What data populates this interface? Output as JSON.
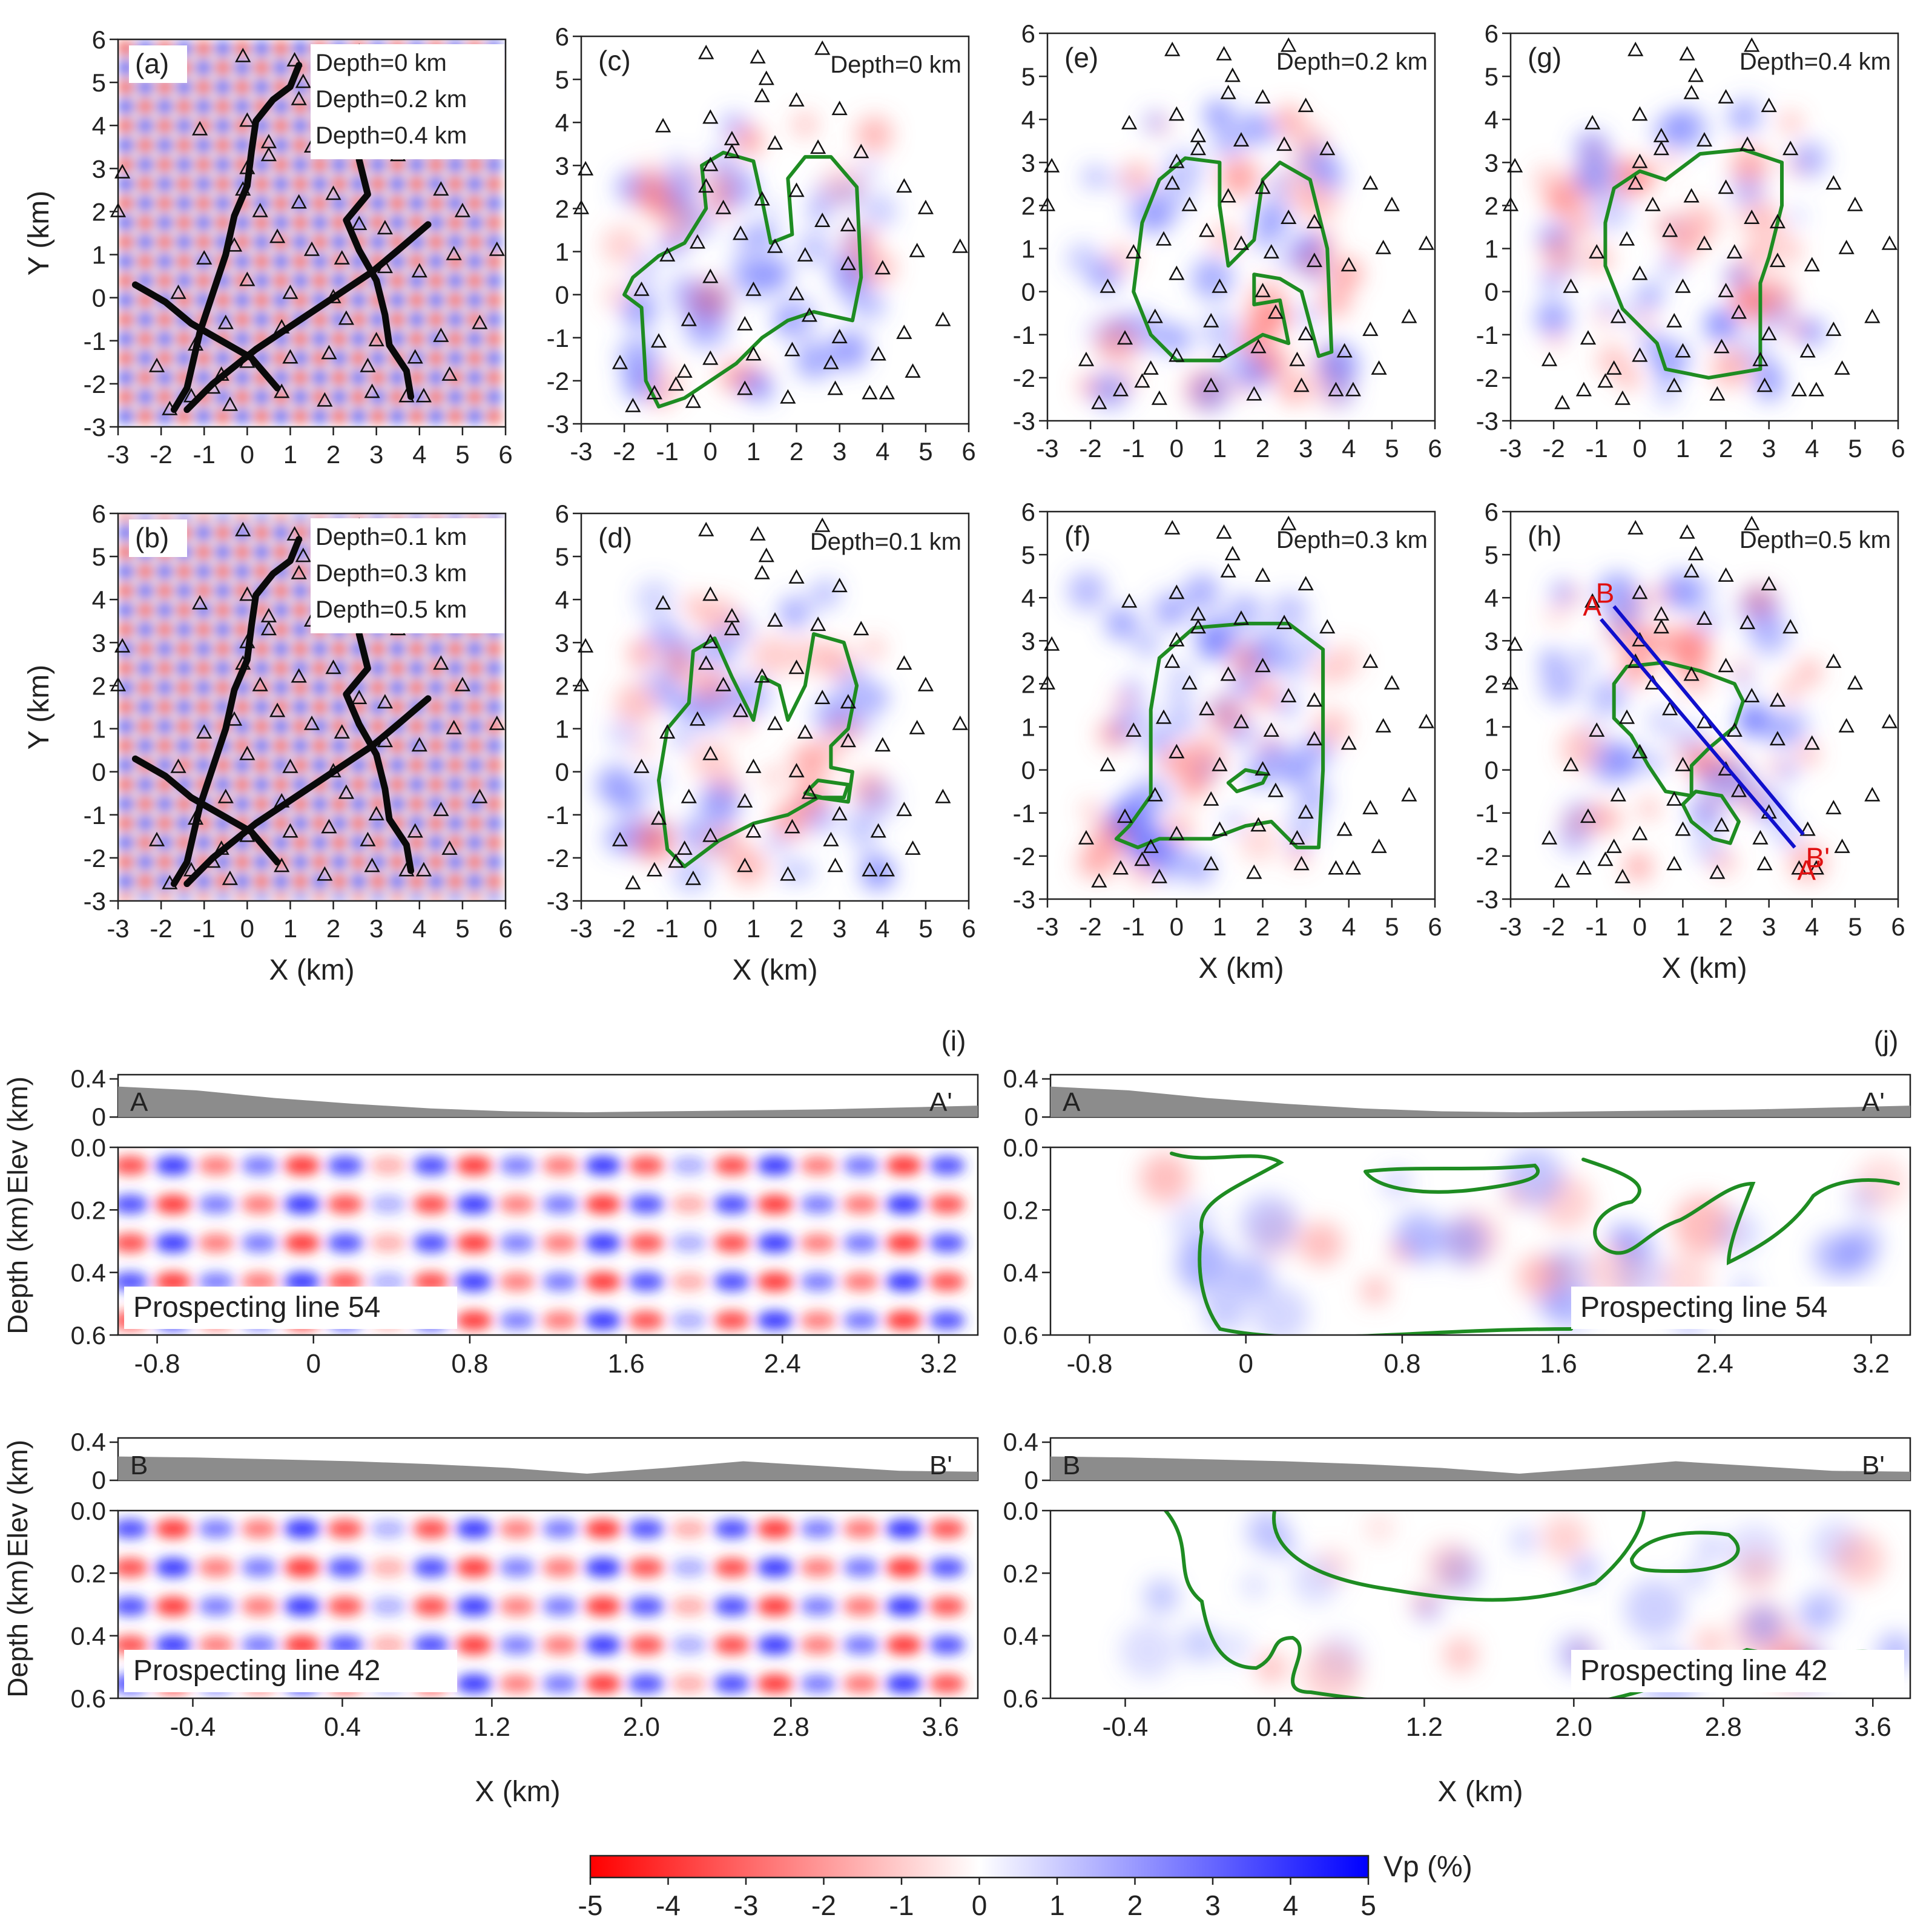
{
  "colors": {
    "negative": "#ff0000",
    "positive": "#0000ff",
    "neutral": "#ffffff",
    "contour": "#1e8c22",
    "profile_line": "#1010cc",
    "profile_label": "#e01010",
    "fault": "#0a0a0a",
    "topography": "#8c8c8c"
  },
  "map_axis": {
    "xlabel": "X (km)",
    "ylabel": "Y (km)",
    "xticks": [
      "-3",
      "-2",
      "-1",
      "0",
      "1",
      "2",
      "3",
      "4",
      "5",
      "6"
    ],
    "yticks": [
      "-3",
      "-2",
      "-1",
      "0",
      "1",
      "2",
      "3",
      "4",
      "5",
      "6"
    ],
    "xlim": [
      -3,
      6
    ],
    "ylim": [
      -3,
      6
    ]
  },
  "panels": [
    {
      "key": "a",
      "label": "(a)",
      "kind": "checker",
      "depths": [
        "Depth=0 km",
        "Depth=0.2 km",
        "Depth=0.4 km"
      ]
    },
    {
      "key": "b",
      "label": "(b)",
      "kind": "checker",
      "depths": [
        "Depth=0.1 km",
        "Depth=0.3 km",
        "Depth=0.5 km"
      ]
    },
    {
      "key": "c",
      "label": "(c)",
      "kind": "recovery",
      "depth": "Depth=0 km"
    },
    {
      "key": "d",
      "label": "(d)",
      "kind": "recovery",
      "depth": "Depth=0.1 km"
    },
    {
      "key": "e",
      "label": "(e)",
      "kind": "recovery",
      "depth": "Depth=0.2 km"
    },
    {
      "key": "f",
      "label": "(f)",
      "kind": "recovery",
      "depth": "Depth=0.3 km"
    },
    {
      "key": "g",
      "label": "(g)",
      "kind": "recovery",
      "depth": "Depth=0.4 km"
    },
    {
      "key": "h",
      "label": "(h)",
      "kind": "recovery",
      "depth": "Depth=0.5 km"
    }
  ],
  "profile_lines": {
    "AA": {
      "start": "A",
      "end": "A'",
      "x0": -0.9,
      "y0": 3.5,
      "x1": 3.6,
      "y1": -1.8
    },
    "BB": {
      "start": "B",
      "end": "B'",
      "x0": -0.6,
      "y0": 3.8,
      "x1": 3.8,
      "y1": -1.5
    }
  },
  "sections": [
    {
      "key": "i1",
      "panel_label": "(i)",
      "ends": [
        "A",
        "A'"
      ],
      "line_label": "Prospecting line 54",
      "xticks": [
        "-0.8",
        "0",
        "0.8",
        "1.6",
        "2.4",
        "3.2"
      ],
      "xlim": [
        -1.0,
        3.4
      ],
      "elev_label": "Elev (km)",
      "elev_ticks": [
        "0.4",
        "0"
      ],
      "depth_label": "Depth (km)",
      "depth_ticks": [
        "0.0",
        "0.2",
        "0.4",
        "0.6"
      ],
      "topo": [
        0.32,
        0.28,
        0.2,
        0.14,
        0.09,
        0.06,
        0.05,
        0.06,
        0.07,
        0.08,
        0.1,
        0.12
      ]
    },
    {
      "key": "j1",
      "panel_label": "(j)",
      "ends": [
        "A",
        "A'"
      ],
      "line_label": "Prospecting line 54",
      "xticks": [
        "-0.8",
        "0",
        "0.8",
        "1.6",
        "2.4",
        "3.2"
      ],
      "xlim": [
        -1.0,
        3.4
      ],
      "elev_label": "",
      "elev_ticks": [
        "0.4",
        "0"
      ],
      "depth_label": "",
      "depth_ticks": [
        "0.0",
        "0.2",
        "0.4",
        "0.6"
      ],
      "topo": [
        0.32,
        0.28,
        0.2,
        0.14,
        0.09,
        0.06,
        0.05,
        0.06,
        0.07,
        0.08,
        0.1,
        0.12
      ]
    },
    {
      "key": "i2",
      "panel_label": "",
      "ends": [
        "B",
        "B'"
      ],
      "line_label": "Prospecting line 42",
      "xticks": [
        "-0.4",
        "0.4",
        "1.2",
        "2.0",
        "2.8",
        "3.6"
      ],
      "xlim": [
        -0.8,
        3.8
      ],
      "elev_label": "Elev (km)",
      "elev_ticks": [
        "0.4",
        "0"
      ],
      "depth_label": "Depth (km)",
      "depth_ticks": [
        "0.0",
        "0.2",
        "0.4",
        "0.6"
      ],
      "topo": [
        0.25,
        0.24,
        0.22,
        0.2,
        0.17,
        0.13,
        0.07,
        0.13,
        0.2,
        0.15,
        0.1,
        0.09
      ]
    },
    {
      "key": "j2",
      "panel_label": "",
      "ends": [
        "B",
        "B'"
      ],
      "line_label": "Prospecting line 42",
      "xticks": [
        "-0.4",
        "0.4",
        "1.2",
        "2.0",
        "2.8",
        "3.6"
      ],
      "xlim": [
        -0.8,
        3.8
      ],
      "elev_label": "",
      "elev_ticks": [
        "0.4",
        "0"
      ],
      "depth_label": "",
      "depth_ticks": [
        "0.0",
        "0.2",
        "0.4",
        "0.6"
      ],
      "topo": [
        0.25,
        0.24,
        0.22,
        0.2,
        0.17,
        0.13,
        0.07,
        0.13,
        0.2,
        0.15,
        0.1,
        0.09
      ]
    }
  ],
  "section_xlabel": "X (km)",
  "colorbar": {
    "label": "Vp (%)",
    "ticks": [
      "-5",
      "-4",
      "-3",
      "-2",
      "-1",
      "0",
      "1",
      "2",
      "3",
      "4",
      "5"
    ],
    "range": [
      -5,
      5
    ]
  },
  "stations": [
    [
      -0.1,
      5.6
    ],
    [
      1.1,
      5.5
    ],
    [
      2.6,
      5.7
    ],
    [
      1.3,
      5.0
    ],
    [
      1.2,
      4.6
    ],
    [
      2.0,
      4.5
    ],
    [
      3.0,
      4.3
    ],
    [
      -1.1,
      3.9
    ],
    [
      0.0,
      4.1
    ],
    [
      0.5,
      3.6
    ],
    [
      0.0,
      3.0
    ],
    [
      0.5,
      3.3
    ],
    [
      1.5,
      3.5
    ],
    [
      2.5,
      3.4
    ],
    [
      3.5,
      3.3
    ],
    [
      -2.9,
      2.9
    ],
    [
      -3.0,
      2.0
    ],
    [
      -0.1,
      2.5
    ],
    [
      0.3,
      2.0
    ],
    [
      1.2,
      2.2
    ],
    [
      2.0,
      2.4
    ],
    [
      2.6,
      1.7
    ],
    [
      3.2,
      1.6
    ],
    [
      4.5,
      2.5
    ],
    [
      5.0,
      2.0
    ],
    [
      5.8,
      1.1
    ],
    [
      -0.3,
      1.2
    ],
    [
      0.7,
      1.4
    ],
    [
      1.5,
      1.1
    ],
    [
      2.2,
      0.9
    ],
    [
      -1.0,
      0.9
    ],
    [
      -1.6,
      0.1
    ],
    [
      0.0,
      0.4
    ],
    [
      1.0,
      0.1
    ],
    [
      2.0,
      0.0
    ],
    [
      3.2,
      0.7
    ],
    [
      4.0,
      0.6
    ],
    [
      4.8,
      1.0
    ],
    [
      -0.5,
      -0.6
    ],
    [
      0.8,
      -0.7
    ],
    [
      2.3,
      -0.5
    ],
    [
      3.0,
      -1.0
    ],
    [
      4.5,
      -0.9
    ],
    [
      5.4,
      -0.6
    ],
    [
      -2.1,
      -1.6
    ],
    [
      -1.2,
      -1.1
    ],
    [
      -0.6,
      -1.8
    ],
    [
      0.0,
      -1.5
    ],
    [
      1.0,
      -1.4
    ],
    [
      1.9,
      -1.3
    ],
    [
      2.8,
      -1.6
    ],
    [
      3.9,
      -1.4
    ],
    [
      4.7,
      -1.8
    ],
    [
      -1.3,
      -2.3
    ],
    [
      -0.8,
      -2.1
    ],
    [
      0.8,
      -2.2
    ],
    [
      1.8,
      -2.4
    ],
    [
      2.9,
      -2.2
    ],
    [
      3.7,
      -2.3
    ],
    [
      4.1,
      -2.3
    ],
    [
      -1.8,
      -2.6
    ],
    [
      -0.4,
      -2.5
    ]
  ]
}
